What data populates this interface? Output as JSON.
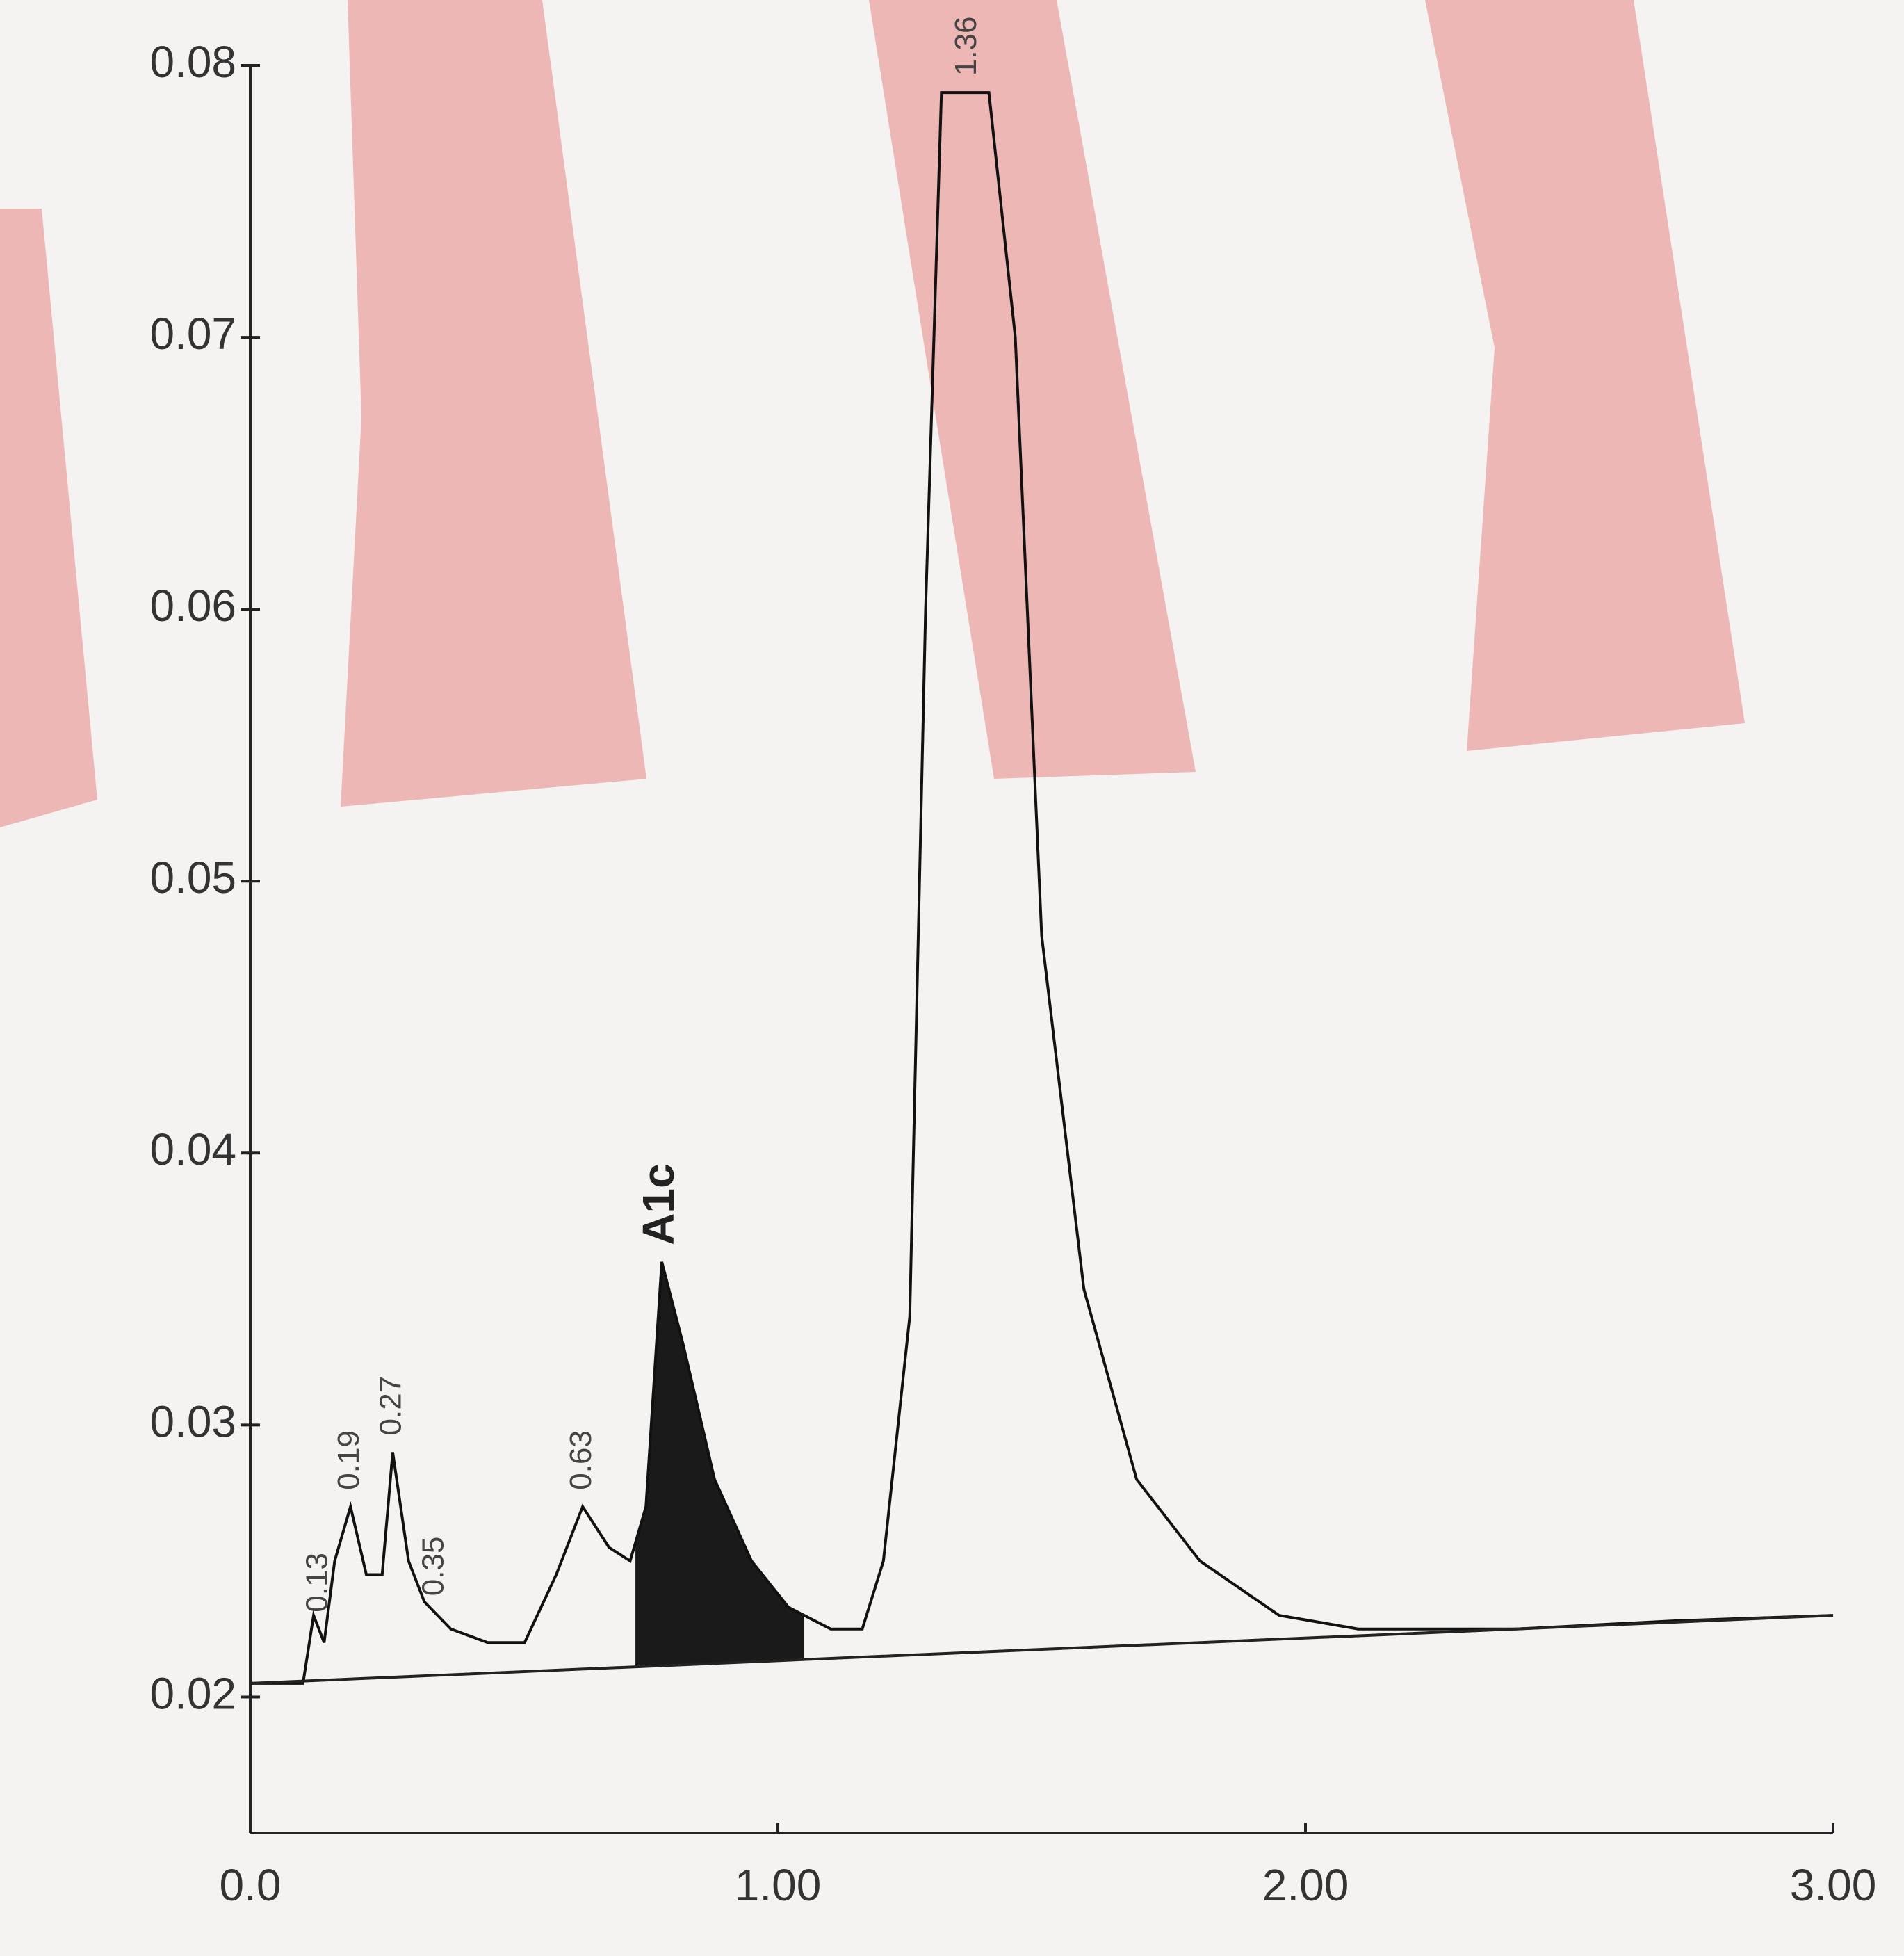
{
  "chart_data": {
    "type": "line",
    "xlim": [
      0,
      3
    ],
    "xticks": [
      {
        "value": 0,
        "label": "0.0"
      },
      {
        "value": 1,
        "label": "1.00"
      },
      {
        "value": 2,
        "label": "2.00"
      },
      {
        "value": 3,
        "label": "3.00"
      }
    ],
    "ylim": [
      0.015,
      0.08
    ],
    "yticks": [
      0.02,
      0.03,
      0.04,
      0.05,
      0.06,
      0.07,
      0.08
    ],
    "series": [
      {
        "color": "#111111",
        "x": [
          0,
          0.1,
          0.12,
          0.14,
          0.16,
          0.19,
          0.22,
          0.25,
          0.27,
          0.3,
          0.33,
          0.38,
          0.45,
          0.52,
          0.58,
          0.63,
          0.68,
          0.72,
          0.75,
          0.78,
          0.82,
          0.88,
          0.95,
          1.02,
          1.1,
          1.16,
          1.2,
          1.25,
          1.28,
          1.31,
          1.35,
          1.4,
          1.45,
          1.5,
          1.58,
          1.68,
          1.8,
          1.95,
          2.1,
          2.4,
          2.7,
          3.0
        ],
        "values": [
          0.0205,
          0.0205,
          0.023,
          0.022,
          0.025,
          0.027,
          0.0245,
          0.0245,
          0.029,
          0.025,
          0.0235,
          0.0225,
          0.022,
          0.022,
          0.0245,
          0.027,
          0.0255,
          0.025,
          0.027,
          0.036,
          0.033,
          0.028,
          0.025,
          0.0233,
          0.0225,
          0.0225,
          0.025,
          0.034,
          0.06,
          0.079,
          0.079,
          0.079,
          0.07,
          0.048,
          0.035,
          0.028,
          0.025,
          0.023,
          0.0225,
          0.0225,
          0.0228,
          0.023
        ],
        "fill_range": [
          0.73,
          1.05
        ]
      },
      {
        "color": "#222222",
        "x": [
          0,
          3.0
        ],
        "values": [
          0.0205,
          0.023
        ]
      }
    ],
    "annotations": [
      {
        "label": "0.13",
        "x": 0.13
      },
      {
        "label": "0.19",
        "x": 0.19
      },
      {
        "label": "0.27",
        "x": 0.27
      },
      {
        "label": "0.35",
        "x": 0.35
      },
      {
        "label": "0.63",
        "x": 0.63
      },
      {
        "label": "A1c",
        "x": 0.78
      },
      {
        "label": "1.36",
        "x": 1.36
      }
    ]
  }
}
